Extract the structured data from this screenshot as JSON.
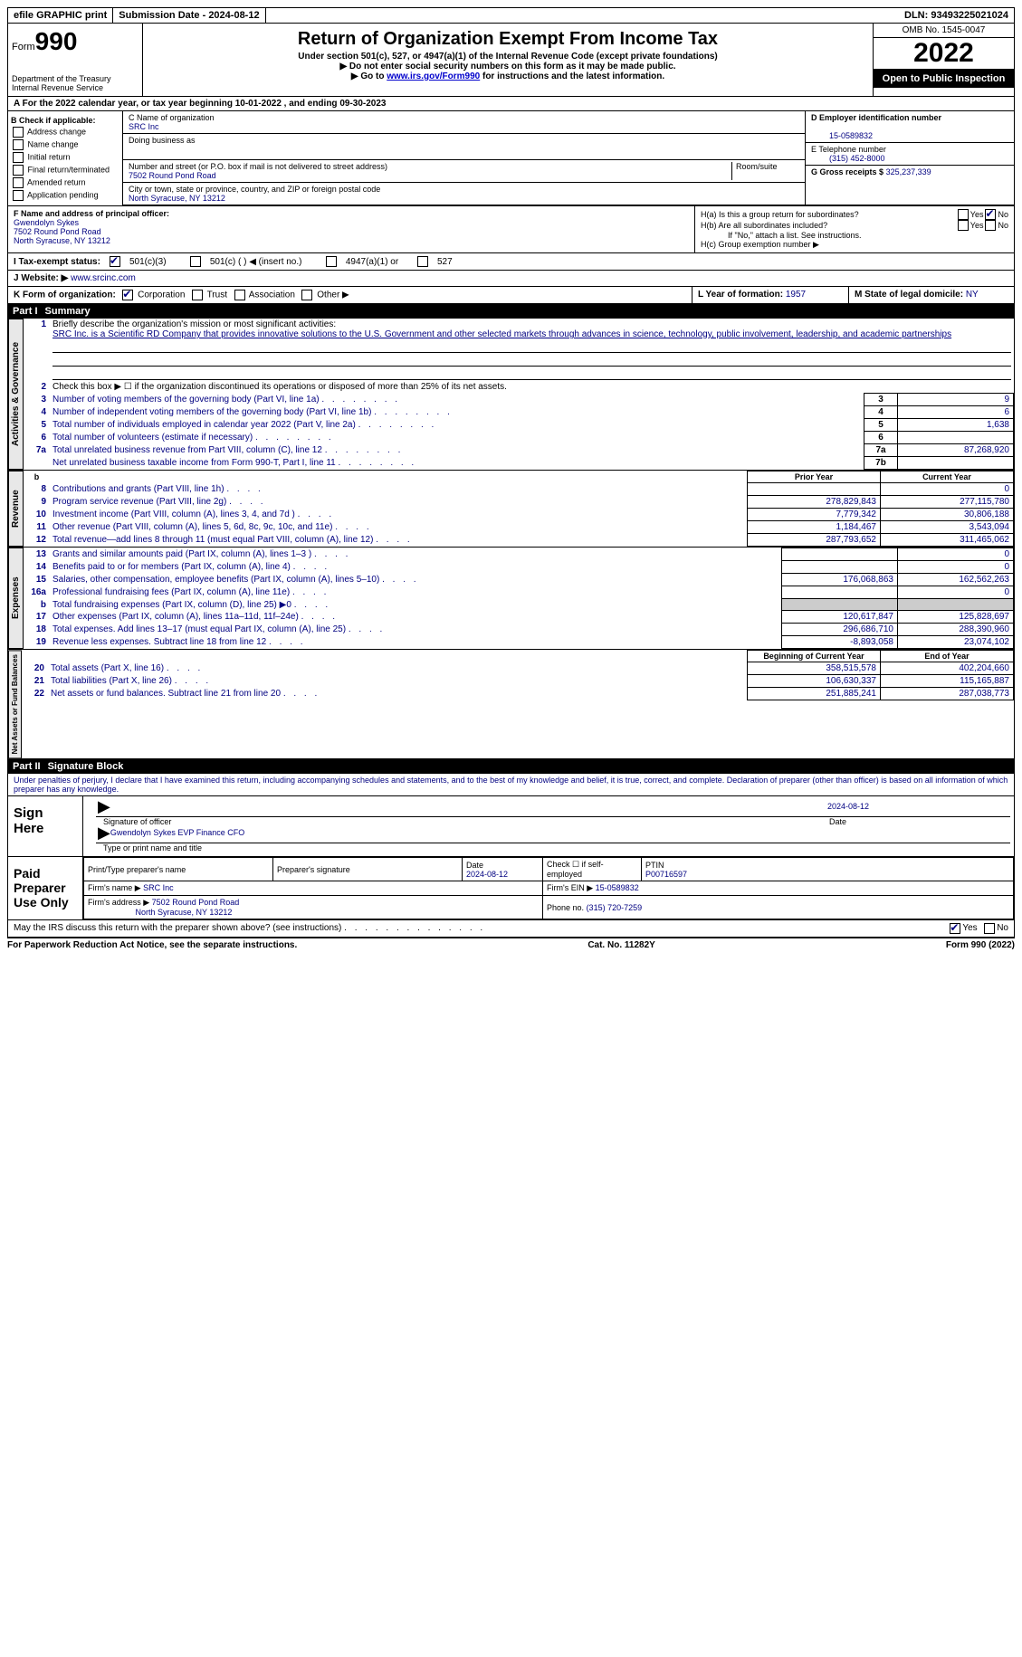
{
  "topbar": {
    "efile": "efile GRAPHIC print",
    "submission": "Submission Date - 2024-08-12",
    "dln": "DLN: 93493225021024"
  },
  "header": {
    "form_prefix": "Form",
    "form_num": "990",
    "dept": "Department of the Treasury Internal Revenue Service",
    "title": "Return of Organization Exempt From Income Tax",
    "subtitle": "Under section 501(c), 527, or 4947(a)(1) of the Internal Revenue Code (except private foundations)",
    "note1": "▶ Do not enter social security numbers on this form as it may be made public.",
    "note2_pre": "▶ Go to ",
    "note2_link": "www.irs.gov/Form990",
    "note2_post": " for instructions and the latest information.",
    "omb": "OMB No. 1545-0047",
    "year": "2022",
    "inspection": "Open to Public Inspection"
  },
  "rowA": "A For the 2022 calendar year, or tax year beginning 10-01-2022    , and ending 09-30-2023",
  "boxB": {
    "title": "B Check if applicable:",
    "items": [
      "Address change",
      "Name change",
      "Initial return",
      "Final return/terminated",
      "Amended return",
      "Application pending"
    ]
  },
  "boxC": {
    "label_name": "C Name of organization",
    "name": "SRC Inc",
    "dba_label": "Doing business as",
    "addr_label": "Number and street (or P.O. box if mail is not delivered to street address)",
    "room_label": "Room/suite",
    "addr": "7502 Round Pond Road",
    "city_label": "City or town, state or province, country, and ZIP or foreign postal code",
    "city": "North Syracuse, NY  13212"
  },
  "boxD": {
    "label": "D Employer identification number",
    "value": "15-0589832"
  },
  "boxE": {
    "label": "E Telephone number",
    "value": "(315) 452-8000"
  },
  "boxG": {
    "label": "G Gross receipts $",
    "value": "325,237,339"
  },
  "boxF": {
    "label": "F Name and address of principal officer:",
    "name": "Gwendolyn Sykes",
    "addr1": "7502 Round Pond Road",
    "addr2": "North Syracuse, NY  13212"
  },
  "boxH": {
    "ha": "H(a)  Is this a group return for subordinates?",
    "hb": "H(b)  Are all subordinates included?",
    "hb_note": "If \"No,\" attach a list. See instructions.",
    "hc": "H(c)  Group exemption number ▶",
    "yes": "Yes",
    "no": "No"
  },
  "boxI": {
    "label": "I Tax-exempt status:",
    "opt1": "501(c)(3)",
    "opt2": "501(c) (   ) ◀ (insert no.)",
    "opt3": "4947(a)(1) or",
    "opt4": "527"
  },
  "boxJ": {
    "label": "J   Website: ▶",
    "value": "www.srcinc.com"
  },
  "boxK": {
    "label": "K Form of organization:",
    "opts": [
      "Corporation",
      "Trust",
      "Association",
      "Other ▶"
    ]
  },
  "boxL": {
    "label": "L Year of formation:",
    "value": "1957"
  },
  "boxM": {
    "label": "M State of legal domicile:",
    "value": "NY"
  },
  "part1": {
    "title": "Part I",
    "heading": "Summary",
    "line1_label": "Briefly describe the organization's mission or most significant activities:",
    "line1_text": "SRC Inc. is a Scientific RD Company that provides innovative solutions to the U.S. Government and other selected markets through advances in science, technology, public involvement, leadership, and academic partnerships",
    "line2": "Check this box ▶ ☐ if the organization discontinued its operations or disposed of more than 25% of its net assets.",
    "lines_governance": [
      {
        "n": "3",
        "t": "Number of voting members of the governing body (Part VI, line 1a)",
        "box": "3",
        "v": "9"
      },
      {
        "n": "4",
        "t": "Number of independent voting members of the governing body (Part VI, line 1b)",
        "box": "4",
        "v": "6"
      },
      {
        "n": "5",
        "t": "Total number of individuals employed in calendar year 2022 (Part V, line 2a)",
        "box": "5",
        "v": "1,638"
      },
      {
        "n": "6",
        "t": "Total number of volunteers (estimate if necessary)",
        "box": "6",
        "v": ""
      },
      {
        "n": "7a",
        "t": "Total unrelated business revenue from Part VIII, column (C), line 12",
        "box": "7a",
        "v": "87,268,920"
      },
      {
        "n": "",
        "t": "Net unrelated business taxable income from Form 990-T, Part I, line 11",
        "box": "7b",
        "v": ""
      }
    ],
    "col_headers": {
      "b": "b",
      "prior": "Prior Year",
      "current": "Current Year"
    },
    "revenue": [
      {
        "n": "8",
        "t": "Contributions and grants (Part VIII, line 1h)",
        "p": "",
        "c": "0"
      },
      {
        "n": "9",
        "t": "Program service revenue (Part VIII, line 2g)",
        "p": "278,829,843",
        "c": "277,115,780"
      },
      {
        "n": "10",
        "t": "Investment income (Part VIII, column (A), lines 3, 4, and 7d )",
        "p": "7,779,342",
        "c": "30,806,188"
      },
      {
        "n": "11",
        "t": "Other revenue (Part VIII, column (A), lines 5, 6d, 8c, 9c, 10c, and 11e)",
        "p": "1,184,467",
        "c": "3,543,094"
      },
      {
        "n": "12",
        "t": "Total revenue—add lines 8 through 11 (must equal Part VIII, column (A), line 12)",
        "p": "287,793,652",
        "c": "311,465,062"
      }
    ],
    "expenses": [
      {
        "n": "13",
        "t": "Grants and similar amounts paid (Part IX, column (A), lines 1–3 )",
        "p": "",
        "c": "0"
      },
      {
        "n": "14",
        "t": "Benefits paid to or for members (Part IX, column (A), line 4)",
        "p": "",
        "c": "0"
      },
      {
        "n": "15",
        "t": "Salaries, other compensation, employee benefits (Part IX, column (A), lines 5–10)",
        "p": "176,068,863",
        "c": "162,562,263"
      },
      {
        "n": "16a",
        "t": "Professional fundraising fees (Part IX, column (A), line 11e)",
        "p": "",
        "c": "0"
      },
      {
        "n": "b",
        "t": "Total fundraising expenses (Part IX, column (D), line 25) ▶0",
        "p": "shaded",
        "c": "shaded"
      },
      {
        "n": "17",
        "t": "Other expenses (Part IX, column (A), lines 11a–11d, 11f–24e)",
        "p": "120,617,847",
        "c": "125,828,697"
      },
      {
        "n": "18",
        "t": "Total expenses. Add lines 13–17 (must equal Part IX, column (A), line 25)",
        "p": "296,686,710",
        "c": "288,390,960"
      },
      {
        "n": "19",
        "t": "Revenue less expenses. Subtract line 18 from line 12",
        "p": "-8,893,058",
        "c": "23,074,102"
      }
    ],
    "net_headers": {
      "begin": "Beginning of Current Year",
      "end": "End of Year"
    },
    "netassets": [
      {
        "n": "20",
        "t": "Total assets (Part X, line 16)",
        "p": "358,515,578",
        "c": "402,204,660"
      },
      {
        "n": "21",
        "t": "Total liabilities (Part X, line 26)",
        "p": "106,630,337",
        "c": "115,165,887"
      },
      {
        "n": "22",
        "t": "Net assets or fund balances. Subtract line 21 from line 20",
        "p": "251,885,241",
        "c": "287,038,773"
      }
    ],
    "vert_labels": {
      "gov": "Activities & Governance",
      "rev": "Revenue",
      "exp": "Expenses",
      "net": "Net Assets or Fund Balances"
    }
  },
  "part2": {
    "title": "Part II",
    "heading": "Signature Block",
    "declaration": "Under penalties of perjury, I declare that I have examined this return, including accompanying schedules and statements, and to the best of my knowledge and belief, it is true, correct, and complete. Declaration of preparer (other than officer) is based on all information of which preparer has any knowledge.",
    "sign_here": "Sign Here",
    "sig_officer": "Signature of officer",
    "sig_date": "Date",
    "sig_date_val": "2024-08-12",
    "sig_name": "Gwendolyn Sykes EVP Finance CFO",
    "sig_name_label": "Type or print name and title",
    "paid": "Paid Preparer Use Only",
    "prep_name_label": "Print/Type preparer's name",
    "prep_sig_label": "Preparer's signature",
    "prep_date_label": "Date",
    "prep_date": "2024-08-12",
    "prep_check": "Check ☐ if self-employed",
    "ptin_label": "PTIN",
    "ptin": "P00716597",
    "firm_name_label": "Firm's name     ▶",
    "firm_name": "SRC Inc",
    "firm_ein_label": "Firm's EIN ▶",
    "firm_ein": "15-0589832",
    "firm_addr_label": "Firm's address ▶",
    "firm_addr1": "7502 Round Pond Road",
    "firm_addr2": "North Syracuse, NY  13212",
    "phone_label": "Phone no.",
    "phone": "(315) 720-7259",
    "may_irs": "May the IRS discuss this return with the preparer shown above? (see instructions)"
  },
  "footer": {
    "left": "For Paperwork Reduction Act Notice, see the separate instructions.",
    "mid": "Cat. No. 11282Y",
    "right": "Form 990 (2022)"
  }
}
